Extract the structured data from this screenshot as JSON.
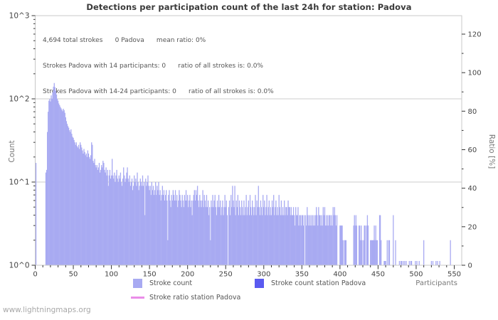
{
  "header": {
    "title": "Detections per participation count of the last 24h for station: Padova"
  },
  "annotation": {
    "lines": [
      "4,694 total strokes      0 Padova      mean ratio: 0%",
      "Strokes Padova with 14 participants: 0      ratio of all strokes is: 0.0%",
      "Strokes Padova with 14-24 participants: 0      ratio of all strokes is: 0.0%"
    ]
  },
  "axes": {
    "left_label": "Count",
    "right_label": "Ratio [%]",
    "x_label": "Participants",
    "left_ticks": [
      "10^0",
      "10^1",
      "10^2",
      "10^3"
    ],
    "right_ticks": [
      0,
      20,
      40,
      60,
      80,
      100,
      120
    ],
    "x_ticks": [
      0,
      50,
      100,
      150,
      200,
      250,
      300,
      350,
      400,
      450,
      500,
      550
    ]
  },
  "legend": [
    {
      "label": "Stroke count",
      "color": "#a8aaf2",
      "shape": "square"
    },
    {
      "label": "Stroke count station Padova",
      "color": "#5a5af0",
      "shape": "square"
    },
    {
      "label": "Stroke ratio station Padova",
      "color": "#ea8de8",
      "shape": "line"
    }
  ],
  "watermark": "www.lightningmaps.org",
  "colors": {
    "bar": "#a8aaf2",
    "station_bar": "#5a5af0",
    "ratio_line": "#ea8de8",
    "grid": "#cccccc",
    "border": "#c8c8c8",
    "tick": "#333333",
    "tick_label": "#444444",
    "axis_label": "#777777"
  },
  "chart_data": {
    "type": "bar",
    "title": "Detections per participation count of the last 24h for station: Padova",
    "xlabel": "Participants",
    "ylabel": "Count",
    "y2label": "Ratio [%]",
    "y_scale": "log",
    "ylim_log_exponents": [
      0,
      3
    ],
    "y2lim": [
      0,
      120
    ],
    "xlim": [
      0,
      560
    ],
    "grid": "horizontal gridlines at 10^1 and 10^2",
    "legend_position": "bottom-center",
    "total_strokes": "4,694",
    "station": "Padova",
    "station_strokes": 0,
    "mean_ratio_percent": 0,
    "series": [
      {
        "name": "Stroke count",
        "type": "bar",
        "bin_width": 1,
        "first_participant": 14,
        "counts": [
          13,
          14,
          40,
          70,
          95,
          100,
          93,
          110,
          100,
          120,
          140,
          155,
          138,
          125,
          113,
          100,
          95,
          88,
          84,
          80,
          77,
          74,
          71,
          76,
          73,
          68,
          60,
          54,
          50,
          47,
          45,
          42,
          40,
          43,
          38,
          35,
          34,
          32,
          30,
          28,
          30,
          27,
          26,
          28,
          25,
          30,
          28,
          26,
          24,
          22,
          25,
          23,
          21,
          22,
          20,
          24,
          22,
          20,
          19,
          21,
          30,
          28,
          18,
          17,
          19,
          16,
          15,
          16,
          14,
          15,
          17,
          13,
          14,
          16,
          15,
          18,
          17,
          14,
          13,
          15,
          12,
          14,
          9,
          12,
          14,
          11,
          12,
          19,
          12,
          11,
          13,
          10,
          12,
          14,
          11,
          10,
          12,
          11,
          13,
          10,
          9,
          11,
          15,
          12,
          10,
          11,
          13,
          15,
          11,
          10,
          12,
          9,
          10,
          11,
          8,
          9,
          12,
          10,
          11,
          9,
          13,
          10,
          8,
          9,
          11,
          10,
          9,
          12,
          9,
          10,
          4,
          11,
          9,
          10,
          12,
          9,
          8,
          9,
          7,
          10,
          8,
          9,
          7,
          8,
          10,
          7,
          9,
          8,
          10,
          7,
          8,
          6,
          7,
          9,
          7,
          8,
          6,
          7,
          8,
          6,
          2,
          7,
          8,
          6,
          5,
          7,
          6,
          8,
          7,
          6,
          8,
          6,
          7,
          5,
          6,
          8,
          7,
          6,
          5,
          7,
          6,
          5,
          7,
          6,
          8,
          6,
          7,
          5,
          6,
          7,
          5,
          6,
          4,
          6,
          7,
          8,
          6,
          8,
          7,
          9,
          6,
          5,
          7,
          6,
          5,
          6,
          8,
          5,
          7,
          6,
          5,
          7,
          5,
          6,
          4,
          5,
          2,
          6,
          5,
          7,
          5,
          6,
          7,
          5,
          4,
          6,
          5,
          7,
          5,
          6,
          4,
          5,
          6,
          4,
          5,
          7,
          5,
          6,
          4,
          0,
          5,
          6,
          4,
          7,
          5,
          9,
          6,
          5,
          9,
          4,
          6,
          5,
          7,
          4,
          6,
          5,
          4,
          6,
          5,
          4,
          6,
          4,
          5,
          7,
          4,
          5,
          6,
          4,
          7,
          5,
          4,
          6,
          5,
          4,
          5,
          7,
          4,
          6,
          5,
          9,
          5,
          4,
          6,
          5,
          4,
          7,
          5,
          6,
          4,
          5,
          7,
          4,
          5,
          6,
          4,
          5,
          4,
          6,
          5,
          7,
          4,
          5,
          6,
          4,
          5,
          4,
          7,
          5,
          4,
          6,
          4,
          5,
          4,
          6,
          4,
          5,
          5,
          4,
          6,
          5,
          5,
          4,
          5,
          4,
          4,
          5,
          4,
          3,
          5,
          4,
          4,
          5,
          3,
          4,
          4,
          3,
          4,
          4,
          3,
          4,
          0,
          4,
          3,
          5,
          4,
          3,
          4,
          3,
          4,
          3,
          4,
          3,
          4,
          3,
          4,
          5,
          4,
          3,
          5,
          4,
          4,
          3,
          4,
          3,
          5,
          4,
          5,
          3,
          4,
          3,
          4,
          3,
          4,
          4,
          3,
          4,
          3,
          5,
          4,
          5,
          4,
          3,
          4,
          0,
          0,
          0,
          3,
          3,
          3,
          3,
          2,
          0,
          2,
          2,
          2,
          0,
          0,
          0,
          0,
          0,
          0,
          0,
          0,
          0,
          3,
          4,
          3,
          4,
          3,
          0,
          0,
          3,
          3,
          2,
          3,
          2,
          0,
          2,
          3,
          3,
          0,
          3,
          4,
          3,
          0,
          0,
          2,
          2,
          2,
          2,
          2,
          3,
          2,
          3,
          2,
          2,
          0,
          0,
          4,
          4,
          2,
          0,
          0,
          0,
          1,
          1,
          1,
          0,
          2,
          0,
          2,
          2,
          0,
          0,
          0,
          0,
          4,
          0,
          0,
          2
        ],
        "isolated_bars": [
          [
            1,
            17
          ],
          [
            478,
            1
          ],
          [
            480,
            1
          ],
          [
            481,
            1
          ],
          [
            483,
            1
          ],
          [
            485,
            1
          ],
          [
            487,
            1
          ],
          [
            491,
            1
          ],
          [
            493,
            1
          ],
          [
            494,
            1
          ],
          [
            499,
            1
          ],
          [
            501,
            1
          ],
          [
            504,
            1
          ],
          [
            510,
            2
          ],
          [
            520,
            1
          ],
          [
            522,
            1
          ],
          [
            526,
            1
          ],
          [
            528,
            1
          ],
          [
            531,
            1
          ],
          [
            545,
            2
          ]
        ]
      },
      {
        "name": "Stroke count station Padova",
        "type": "bar",
        "counts_all_zero": true
      },
      {
        "name": "Stroke ratio station Padova",
        "type": "line",
        "ratio_percent_all": 0
      }
    ]
  }
}
